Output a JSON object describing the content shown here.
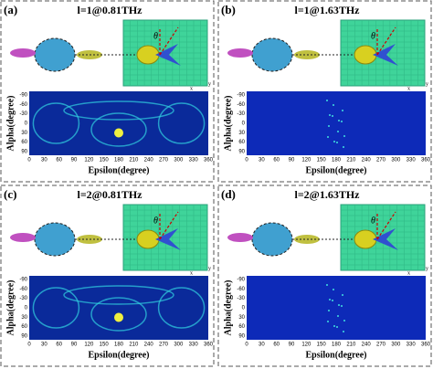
{
  "figure": {
    "panels": [
      {
        "label": "(a)",
        "title": "l=1@0.81THz"
      },
      {
        "label": "(b)",
        "title": "l=1@1.63THz"
      },
      {
        "label": "(c)",
        "title": "l=2@0.81THz"
      },
      {
        "label": "(d)",
        "title": "l=2@1.63THz"
      }
    ],
    "axes": {
      "x_label": "Epsilon(degree)",
      "y_label": "Alpha(degree)",
      "x_ticks": [
        0,
        30,
        60,
        90,
        120,
        150,
        180,
        210,
        240,
        270,
        300,
        330,
        360
      ],
      "y_ticks": [
        -90,
        -60,
        -30,
        0,
        30,
        60,
        90
      ]
    },
    "coord_labels": {
      "x": "x",
      "y": "y",
      "theta": "θ"
    }
  }
}
